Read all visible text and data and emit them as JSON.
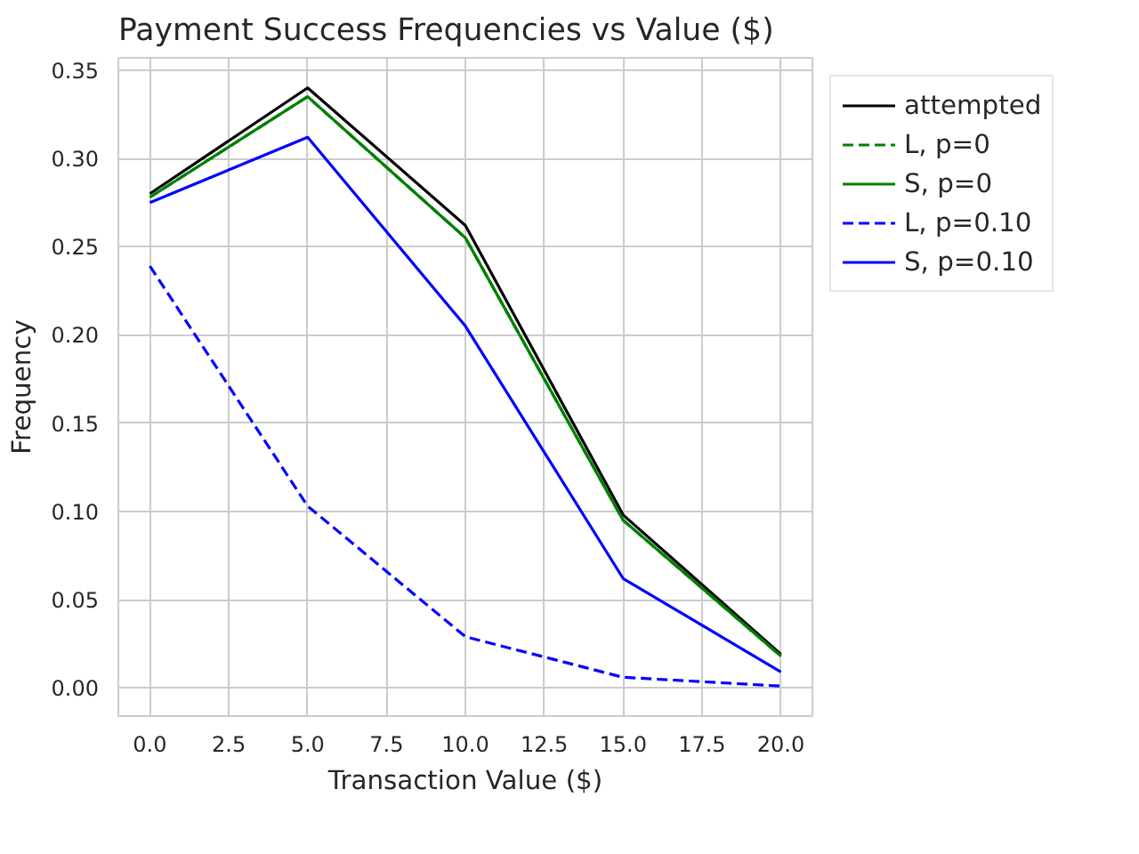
{
  "chart_data": {
    "type": "line",
    "title": "Payment Success Frequencies vs Value ($)",
    "xlabel": "Transaction Value ($)",
    "ylabel": "Frequency",
    "x": [
      0,
      5,
      10,
      15,
      20
    ],
    "series": [
      {
        "name": "attempted",
        "color": "#000000",
        "values": [
          0.28,
          0.34,
          0.262,
          0.098,
          0.019
        ],
        "line_style": "solid"
      },
      {
        "name": "L, p=0",
        "color": "#008000",
        "values": [
          0.278,
          0.335,
          0.255,
          0.095,
          0.018
        ],
        "line_style": "dashed"
      },
      {
        "name": "S, p=0",
        "color": "#008000",
        "values": [
          0.278,
          0.335,
          0.255,
          0.095,
          0.018
        ],
        "line_style": "solid"
      },
      {
        "name": "L, p=0.10",
        "color": "#0000ff",
        "values": [
          0.239,
          0.103,
          0.029,
          0.006,
          0.001
        ],
        "line_style": "dashed"
      },
      {
        "name": "S, p=0.10",
        "color": "#0000ff",
        "values": [
          0.275,
          0.312,
          0.205,
          0.062,
          0.009
        ],
        "line_style": "solid"
      }
    ],
    "xlim": [
      -1,
      21
    ],
    "ylim": [
      -0.016,
      0.357
    ],
    "xticks": [
      {
        "value": 0,
        "label": "0.0"
      },
      {
        "value": 2.5,
        "label": "2.5"
      },
      {
        "value": 5,
        "label": "5.0"
      },
      {
        "value": 7.5,
        "label": "7.5"
      },
      {
        "value": 10,
        "label": "10.0"
      },
      {
        "value": 12.5,
        "label": "12.5"
      },
      {
        "value": 15,
        "label": "15.0"
      },
      {
        "value": 17.5,
        "label": "17.5"
      },
      {
        "value": 20,
        "label": "20.0"
      }
    ],
    "yticks": [
      {
        "value": 0,
        "label": "0.00"
      },
      {
        "value": 0.05,
        "label": "0.05"
      },
      {
        "value": 0.1,
        "label": "0.10"
      },
      {
        "value": 0.15,
        "label": "0.15"
      },
      {
        "value": 0.2,
        "label": "0.20"
      },
      {
        "value": 0.25,
        "label": "0.25"
      },
      {
        "value": 0.3,
        "label": "0.30"
      },
      {
        "value": 0.35,
        "label": "0.35"
      }
    ],
    "grid": true,
    "legend": "top right",
    "marker": "none"
  }
}
